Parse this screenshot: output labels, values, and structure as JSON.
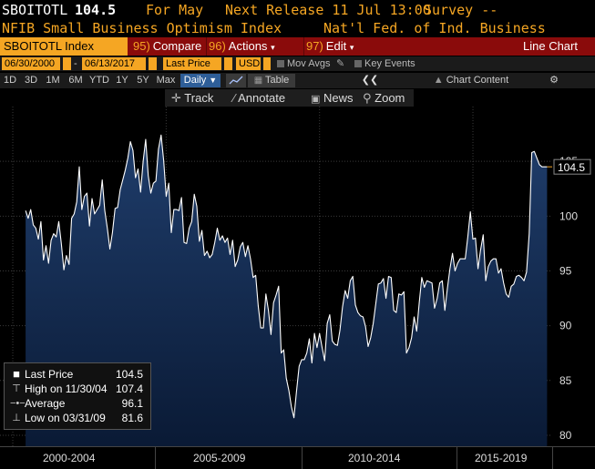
{
  "header": {
    "ticker": "SBOITOTL",
    "last_value": "104.5",
    "for_period": "For May",
    "next_release": "Next Release 11 Jul 13:00",
    "survey": "Survey --",
    "index_name": "NFIB Small Business Optimism Index",
    "source": "Nat'l Fed. of Ind. Business"
  },
  "commandbar": {
    "ticker_label": "SBOITOTL Index",
    "compare_num": "95)",
    "compare_label": "Compare",
    "actions_num": "96)",
    "actions_label": "Actions",
    "edit_num": "97)",
    "edit_label": "Edit",
    "chart_type": "Line Chart"
  },
  "datebar": {
    "start_date": "06/30/2000",
    "end_date": "06/13/2017",
    "price_field": "Last Price",
    "currency": "USD",
    "mov_avgs": "Mov Avgs",
    "key_events": "Key Events"
  },
  "periods": [
    "1D",
    "3D",
    "1M",
    "6M",
    "YTD",
    "1Y",
    "5Y",
    "Max"
  ],
  "period_selected": "Daily",
  "table_label": "Table",
  "chart_content_label": "Chart Content",
  "tools": {
    "track": "Track",
    "annotate": "Annotate",
    "news": "News",
    "zoom": "Zoom"
  },
  "legend": {
    "last_price_label": "Last Price",
    "last_price_value": "104.5",
    "high_label": "High on 11/30/04",
    "high_value": "107.4",
    "average_label": "Average",
    "average_value": "96.1",
    "low_label": "Low on 03/31/09",
    "low_value": "81.6"
  },
  "x_axis_labels": [
    "2000-2004",
    "2005-2009",
    "2010-2014",
    "2015-2019"
  ],
  "colors": {
    "orange": "#f5a623",
    "command_red": "#8a0b0b",
    "area_top": "#1c3a66",
    "area_bottom": "#0b1a33",
    "line": "#ffffff",
    "last_marker": "#f5a623"
  },
  "chart_data": {
    "type": "area",
    "title": "",
    "xlabel": "",
    "ylabel": "",
    "ylim": [
      79,
      110
    ],
    "y_ticks": [
      80,
      85,
      90,
      95,
      100,
      105
    ],
    "grid": true,
    "x_range": [
      "2000-06",
      "2017-06"
    ],
    "last_value_tag": "104.5",
    "series": [
      {
        "name": "Last Price",
        "x": [
          "2000-06",
          "2000-07",
          "2000-08",
          "2000-09",
          "2000-10",
          "2000-11",
          "2000-12",
          "2001-01",
          "2001-02",
          "2001-03",
          "2001-04",
          "2001-05",
          "2001-06",
          "2001-07",
          "2001-08",
          "2001-09",
          "2001-10",
          "2001-11",
          "2001-12",
          "2002-01",
          "2002-02",
          "2002-03",
          "2002-04",
          "2002-05",
          "2002-06",
          "2002-07",
          "2002-08",
          "2002-09",
          "2002-10",
          "2002-11",
          "2002-12",
          "2003-01",
          "2003-02",
          "2003-03",
          "2003-04",
          "2003-05",
          "2003-06",
          "2003-07",
          "2003-08",
          "2003-09",
          "2003-10",
          "2003-11",
          "2003-12",
          "2004-01",
          "2004-02",
          "2004-03",
          "2004-04",
          "2004-05",
          "2004-06",
          "2004-07",
          "2004-08",
          "2004-09",
          "2004-10",
          "2004-11",
          "2004-12",
          "2005-01",
          "2005-02",
          "2005-03",
          "2005-04",
          "2005-05",
          "2005-06",
          "2005-07",
          "2005-08",
          "2005-09",
          "2005-10",
          "2005-11",
          "2005-12",
          "2006-01",
          "2006-02",
          "2006-03",
          "2006-04",
          "2006-05",
          "2006-06",
          "2006-07",
          "2006-08",
          "2006-09",
          "2006-10",
          "2006-11",
          "2006-12",
          "2007-01",
          "2007-02",
          "2007-03",
          "2007-04",
          "2007-05",
          "2007-06",
          "2007-07",
          "2007-08",
          "2007-09",
          "2007-10",
          "2007-11",
          "2007-12",
          "2008-01",
          "2008-02",
          "2008-03",
          "2008-04",
          "2008-05",
          "2008-06",
          "2008-07",
          "2008-08",
          "2008-09",
          "2008-10",
          "2008-11",
          "2008-12",
          "2009-01",
          "2009-02",
          "2009-03",
          "2009-04",
          "2009-05",
          "2009-06",
          "2009-07",
          "2009-08",
          "2009-09",
          "2009-10",
          "2009-11",
          "2009-12",
          "2010-01",
          "2010-02",
          "2010-03",
          "2010-04",
          "2010-05",
          "2010-06",
          "2010-07",
          "2010-08",
          "2010-09",
          "2010-10",
          "2010-11",
          "2010-12",
          "2011-01",
          "2011-02",
          "2011-03",
          "2011-04",
          "2011-05",
          "2011-06",
          "2011-07",
          "2011-08",
          "2011-09",
          "2011-10",
          "2011-11",
          "2011-12",
          "2012-01",
          "2012-02",
          "2012-03",
          "2012-04",
          "2012-05",
          "2012-06",
          "2012-07",
          "2012-08",
          "2012-09",
          "2012-10",
          "2012-11",
          "2012-12",
          "2013-01",
          "2013-02",
          "2013-03",
          "2013-04",
          "2013-05",
          "2013-06",
          "2013-07",
          "2013-08",
          "2013-09",
          "2013-10",
          "2013-11",
          "2013-12",
          "2014-01",
          "2014-02",
          "2014-03",
          "2014-04",
          "2014-05",
          "2014-06",
          "2014-07",
          "2014-08",
          "2014-09",
          "2014-10",
          "2014-11",
          "2014-12",
          "2015-01",
          "2015-02",
          "2015-03",
          "2015-04",
          "2015-05",
          "2015-06",
          "2015-07",
          "2015-08",
          "2015-09",
          "2015-10",
          "2015-11",
          "2015-12",
          "2016-01",
          "2016-02",
          "2016-03",
          "2016-04",
          "2016-05",
          "2016-06",
          "2016-07",
          "2016-08",
          "2016-09",
          "2016-10",
          "2016-11",
          "2016-12",
          "2017-01",
          "2017-02",
          "2017-03",
          "2017-04",
          "2017-05",
          "2017-06"
        ],
        "values": [
          100.5,
          99.8,
          100.6,
          99.2,
          98.9,
          97.9,
          99.5,
          96.0,
          97.3,
          95.7,
          97.8,
          98.4,
          98.1,
          99.5,
          97.5,
          95.1,
          96.4,
          95.6,
          99.8,
          100.2,
          101.3,
          104.5,
          100.6,
          101.8,
          102.1,
          99.1,
          101.6,
          100.2,
          100.6,
          101.0,
          103.3,
          100.5,
          98.9,
          97.0,
          98.5,
          100.7,
          100.8,
          102.4,
          103.3,
          104.2,
          105.3,
          106.8,
          106.0,
          103.5,
          104.3,
          102.2,
          105.0,
          107.0,
          103.7,
          102.1,
          103.0,
          103.2,
          106.1,
          107.4,
          105.1,
          101.8,
          103.0,
          98.5,
          100.6,
          100.6,
          100.5,
          101.7,
          97.6,
          97.5,
          98.9,
          99.5,
          102.0,
          100.9,
          97.7,
          98.7,
          96.4,
          96.8,
          96.2,
          96.5,
          97.6,
          98.9,
          97.8,
          98.2,
          97.6,
          98.0,
          96.5,
          97.8,
          95.4,
          96.0,
          97.2,
          97.6,
          96.3,
          97.3,
          96.1,
          94.4,
          94.6,
          91.8,
          89.8,
          89.8,
          92.9,
          91.4,
          89.2,
          92.1,
          92.8,
          93.6,
          87.5,
          87.8,
          85.2,
          84.1,
          82.6,
          81.6,
          84.0,
          86.3,
          86.9,
          86.9,
          87.5,
          88.8,
          86.6,
          89.3,
          88.0,
          89.3,
          88.0,
          86.8,
          90.2,
          91.0,
          88.6,
          88.3,
          88.2,
          89.6,
          91.7,
          93.2,
          92.5,
          94.1,
          94.5,
          91.9,
          91.2,
          90.9,
          90.8,
          89.9,
          88.1,
          88.9,
          90.2,
          92.0,
          93.8,
          93.9,
          94.3,
          92.5,
          94.5,
          94.4,
          91.4,
          91.2,
          92.9,
          92.8,
          93.1,
          87.5,
          88.0,
          88.9,
          90.8,
          89.5,
          92.1,
          94.4,
          93.5,
          94.1,
          94.0,
          93.9,
          91.6,
          92.5,
          93.9,
          94.1,
          91.4,
          93.4,
          95.2,
          96.6,
          95.0,
          95.7,
          96.1,
          96.1,
          96.1,
          98.1,
          100.4,
          97.9,
          98.0,
          95.2,
          96.9,
          98.3,
          94.1,
          95.4,
          95.9,
          96.1,
          96.1,
          94.8,
          95.2,
          93.9,
          92.9,
          92.6,
          93.6,
          93.8,
          94.5,
          94.6,
          94.4,
          94.1,
          94.9,
          98.4,
          105.8,
          105.9,
          105.3,
          104.7,
          104.5,
          104.5,
          104.5
        ]
      }
    ]
  }
}
